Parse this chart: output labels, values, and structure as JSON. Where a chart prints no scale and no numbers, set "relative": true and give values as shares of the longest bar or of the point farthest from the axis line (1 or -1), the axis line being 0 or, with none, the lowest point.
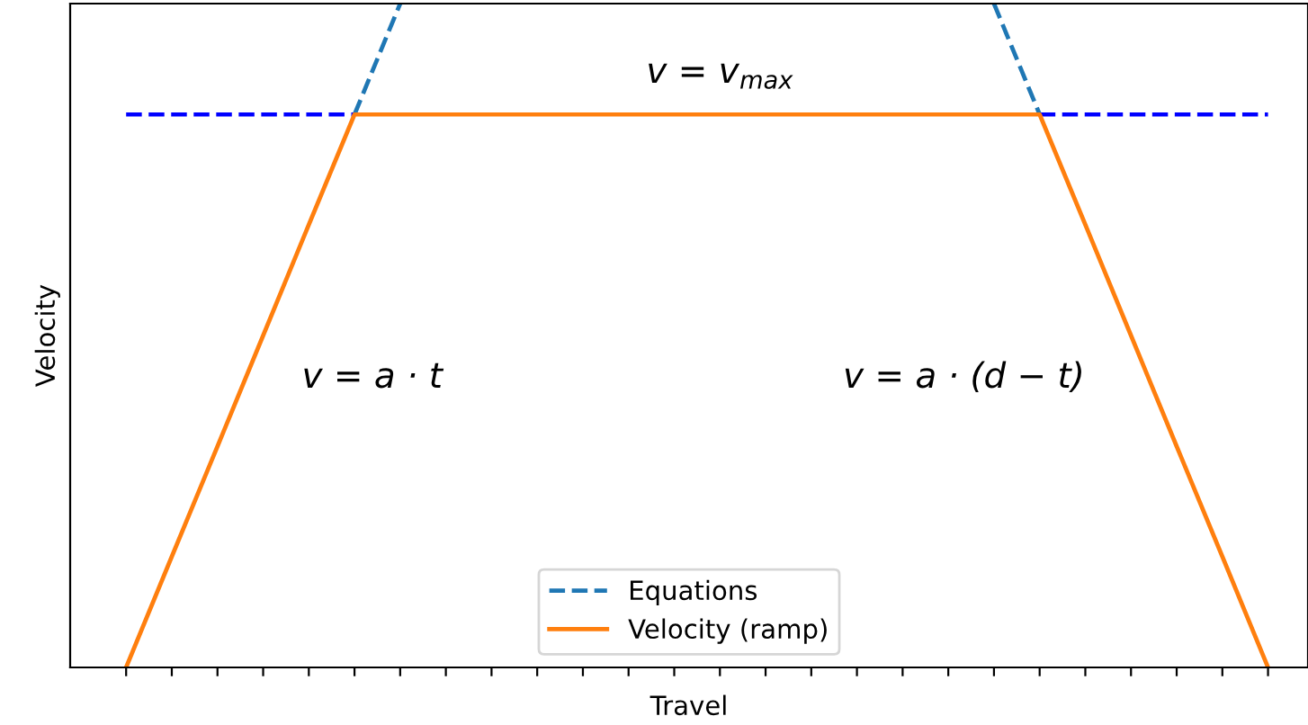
{
  "chart_data": {
    "type": "line",
    "relative": true,
    "xlabel": "Travel",
    "ylabel": "Velocity",
    "legend": "bottom",
    "marker": "none",
    "categories": [
      null,
      null,
      null,
      null,
      null,
      null,
      null,
      null,
      null,
      null,
      null,
      null,
      null,
      null,
      null,
      null,
      null,
      null,
      null,
      null,
      null,
      null,
      null,
      null,
      null,
      null
    ],
    "annotations": [
      "v = v$_{max}$",
      "v = a · t",
      "v = a · (d − t)"
    ],
    "series": [
      {
        "name": "Equations",
        "color": "#1f77b4",
        "line_style": "dashed",
        "values": [
          null,
          null,
          null,
          null,
          null,
          0.833,
          1,
          null,
          null,
          null,
          null,
          null,
          null,
          null,
          null,
          null,
          null,
          null,
          null,
          null,
          null,
          null,
          null,
          null,
          null,
          null
        ]
      },
      {
        "color": "#1f77b4",
        "line_style": "dashed",
        "values": [
          null,
          null,
          null,
          null,
          null,
          null,
          null,
          null,
          null,
          null,
          null,
          null,
          null,
          null,
          null,
          null,
          null,
          null,
          null,
          1,
          0.833,
          null,
          null,
          null,
          null,
          null
        ]
      },
      {
        "color": "#0000ff",
        "line_style": "dashed",
        "values": [
          0.833,
          0.833,
          0.833,
          0.833,
          0.833,
          0.833,
          null,
          null,
          null,
          null,
          null,
          null,
          null,
          null,
          null,
          null,
          null,
          null,
          null,
          null,
          null,
          null,
          null,
          null,
          null,
          null
        ]
      },
      {
        "color": "#0000ff",
        "line_style": "dashed",
        "values": [
          null,
          null,
          null,
          null,
          null,
          null,
          null,
          null,
          null,
          null,
          null,
          null,
          null,
          null,
          null,
          null,
          null,
          null,
          null,
          null,
          0.833,
          0.833,
          0.833,
          0.833,
          0.833,
          0.833
        ]
      },
      {
        "name": "Velocity (ramp)",
        "color": "#ff7f0e",
        "line_style": "solid",
        "values": [
          0,
          0.167,
          0.333,
          0.5,
          0.667,
          0.833,
          0.833,
          0.833,
          0.833,
          0.833,
          0.833,
          0.833,
          0.833,
          0.833,
          0.833,
          0.833,
          0.833,
          0.833,
          0.833,
          0.833,
          0.833,
          0.667,
          0.5,
          0.333,
          0.167,
          0
        ]
      }
    ]
  }
}
